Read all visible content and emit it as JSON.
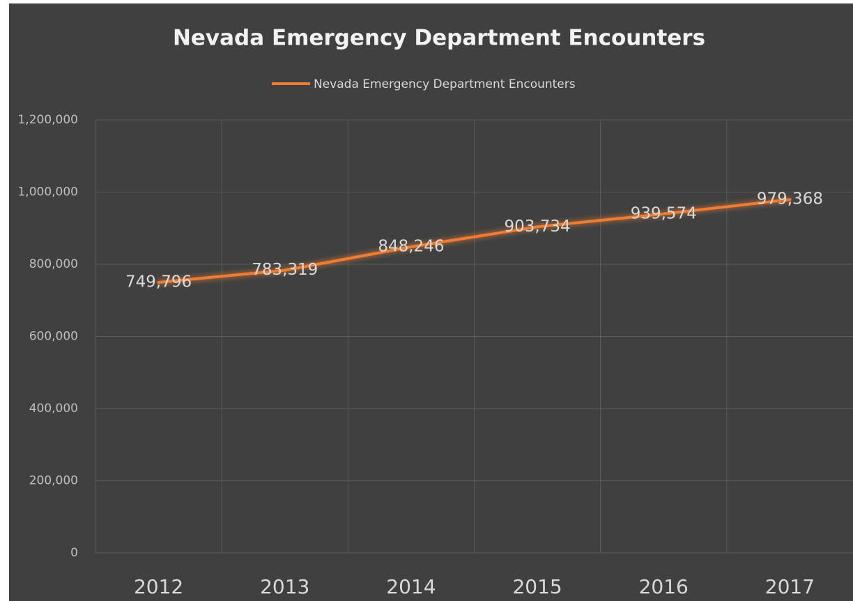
{
  "chart_data": {
    "type": "line",
    "title": "Nevada Emergency Department Encounters",
    "categories": [
      "2012",
      "2013",
      "2014",
      "2015",
      "2016",
      "2017"
    ],
    "series": [
      {
        "name": "Nevada Emergency Department Encounters",
        "color": "#ed7d31",
        "values": [
          749796,
          783319,
          848246,
          903734,
          939574,
          979368
        ],
        "value_labels": [
          "749,796",
          "783,319",
          "848,246",
          "903,734",
          "939,574",
          "979,368"
        ]
      }
    ],
    "ylim": [
      0,
      1200000
    ],
    "yticks": [
      0,
      {
        "value": 200000,
        "label": "200,000"
      },
      {
        "value": 400000,
        "label": "400,000"
      },
      {
        "value": 600000,
        "label": "600,000"
      },
      {
        "value": 800000,
        "label": "800,000"
      },
      {
        "value": 1000000,
        "label": "1,000,000"
      },
      {
        "value": 1200000,
        "label": "1,200,000"
      }
    ],
    "grid": true,
    "legend": "top"
  }
}
